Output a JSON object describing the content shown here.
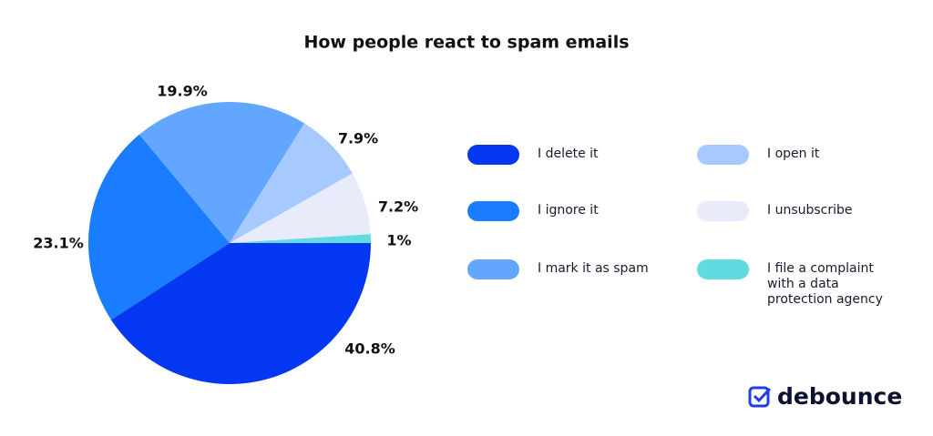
{
  "chart_data": {
    "type": "pie",
    "title": "How people react to spam emails",
    "categories": [
      "I delete it",
      "I ignore it",
      "I mark it as spam",
      "I open it",
      "I unsubscribe",
      "I file a complaint with a data protection agency"
    ],
    "values": [
      40.8,
      23.1,
      19.9,
      7.9,
      7.2,
      1
    ],
    "value_labels": [
      "40.8%",
      "23.1%",
      "19.9%",
      "7.9%",
      "7.2%",
      "1%"
    ],
    "colors": [
      "#0437f2",
      "#1a7cff",
      "#62a6ff",
      "#a6c9ff",
      "#e8ebfa",
      "#62dbe0"
    ]
  },
  "logo": "debounce"
}
